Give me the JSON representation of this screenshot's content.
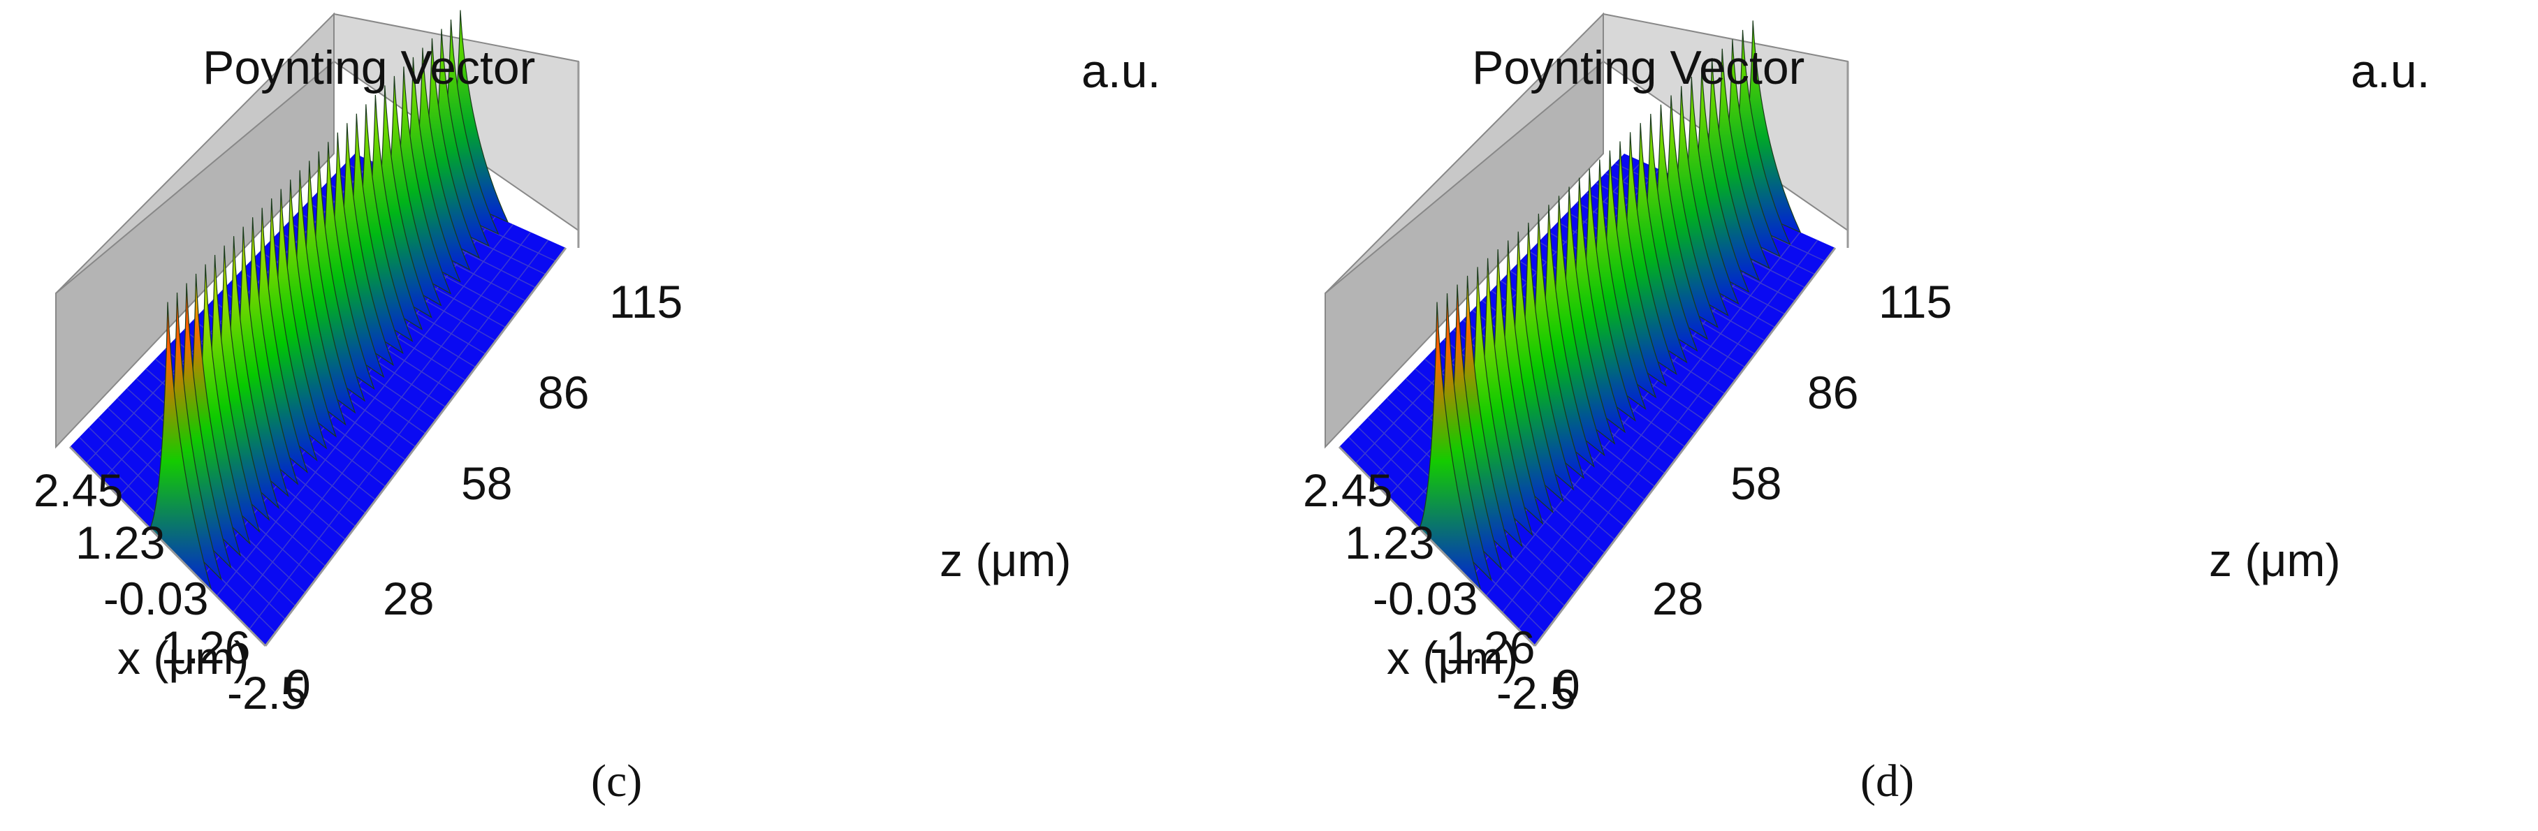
{
  "chart_data": [
    {
      "type": "surface3d",
      "panel": "c",
      "title": "Poynting Vector",
      "zlabel_unit": "a.u.",
      "xlabel": "x (μm)",
      "zlabel": "z (μm)",
      "x_ticks": [
        "2.45",
        "1.23",
        "-0.03",
        "1.26",
        "-2.5"
      ],
      "z_ticks": [
        "0",
        "28",
        "58",
        "86",
        "115"
      ],
      "caption": "(c)",
      "beam": {
        "x_center": 0.0,
        "x_drift": 0.0,
        "peak_start": 1.0,
        "peak_end": 0.78
      },
      "colorscale": [
        "#0000ff",
        "#00cc00",
        "#ffff00",
        "#ff0000"
      ]
    },
    {
      "type": "surface3d",
      "panel": "d",
      "title": "Poynting Vector",
      "zlabel_unit": "a.u.",
      "xlabel": "x (μm)",
      "zlabel": "z (μm)",
      "x_ticks": [
        "2.45",
        "1.23",
        "-0.03",
        "-1.26",
        "-2.5"
      ],
      "z_ticks": [
        "0",
        "28",
        "58",
        "86",
        "115"
      ],
      "caption": "(d)",
      "beam": {
        "x_center": 0.0,
        "x_drift": -0.55,
        "peak_start": 1.0,
        "peak_end": 0.78
      },
      "colorscale": [
        "#0000ff",
        "#00cc00",
        "#ffff00",
        "#ff0000"
      ]
    }
  ]
}
